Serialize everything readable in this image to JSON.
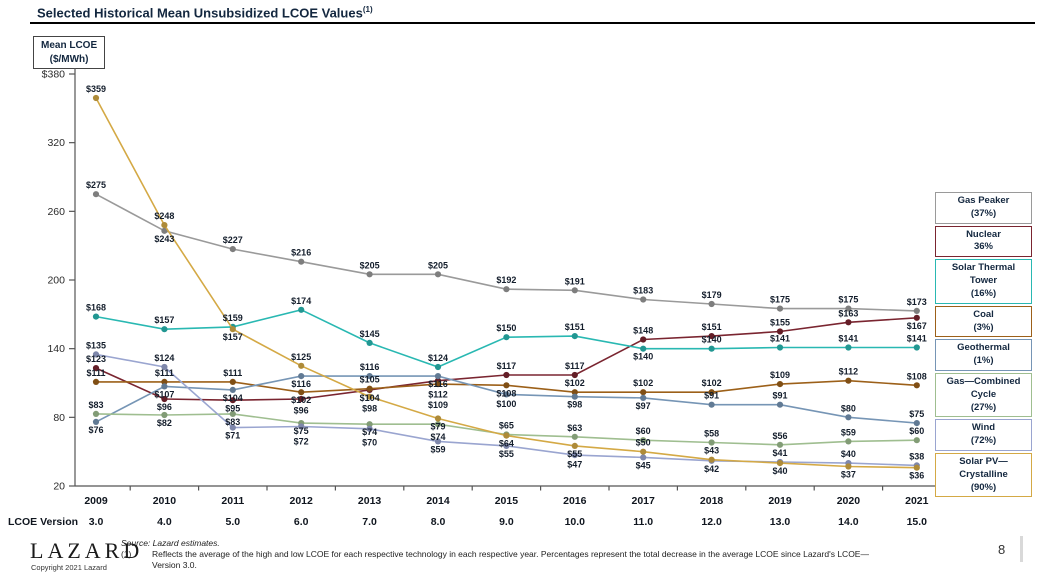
{
  "header": {
    "title": "Selected Historical Mean Unsubsidized LCOE Values",
    "title_superscript": "(1)"
  },
  "axis_box": {
    "line1": "Mean LCOE",
    "line2": "($/MWh)"
  },
  "lcoe_version": {
    "label": "LCOE Version",
    "values": [
      "3.0",
      "4.0",
      "5.0",
      "6.0",
      "7.0",
      "8.0",
      "9.0",
      "10.0",
      "11.0",
      "12.0",
      "13.0",
      "14.0",
      "15.0"
    ]
  },
  "chart_data": {
    "type": "line",
    "title": "Selected Historical Mean Unsubsidized LCOE Values",
    "ylabel": "Mean LCOE ($/MWh)",
    "xlabel": "",
    "ylim": [
      20,
      380
    ],
    "grid": false,
    "legend_position": "right",
    "x": [
      2009,
      2010,
      2011,
      2012,
      2013,
      2014,
      2015,
      2016,
      2017,
      2018,
      2019,
      2020,
      2021
    ],
    "y_ticks": [
      {
        "label": "$380",
        "value": 380
      },
      {
        "label": "320",
        "value": 320
      },
      {
        "label": "260",
        "value": 260
      },
      {
        "label": "200",
        "value": 200
      },
      {
        "label": "140",
        "value": 140
      },
      {
        "label": "80",
        "value": 80
      },
      {
        "label": "20",
        "value": 20
      }
    ],
    "series": [
      {
        "name": "Gas Peaker",
        "legend_lines": [
          "Gas Peaker",
          "(37%)"
        ],
        "color": "#9a9a9a",
        "values": [
          275,
          243,
          227,
          216,
          205,
          205,
          192,
          191,
          183,
          179,
          175,
          175,
          173
        ]
      },
      {
        "name": "Nuclear",
        "legend_lines": [
          "Nuclear",
          "36%"
        ],
        "color": "#7a2530",
        "values": [
          123,
          96,
          95,
          96,
          104,
          112,
          117,
          117,
          148,
          151,
          155,
          163,
          167
        ]
      },
      {
        "name": "Solar Thermal Tower",
        "legend_lines": [
          "Solar Thermal",
          "Tower",
          "(16%)"
        ],
        "color": "#29b8b2",
        "values": [
          168,
          157,
          159,
          174,
          145,
          124,
          150,
          151,
          140,
          140,
          141,
          141,
          141
        ]
      },
      {
        "name": "Coal",
        "legend_lines": [
          "Coal",
          "(3%)"
        ],
        "color": "#9c6019",
        "values": [
          111,
          111,
          111,
          102,
          105,
          109,
          108,
          102,
          102,
          102,
          109,
          112,
          108
        ]
      },
      {
        "name": "Geothermal",
        "legend_lines": [
          "Geothermal",
          "(1%)"
        ],
        "color": "#7695b5",
        "values": [
          76,
          107,
          104,
          116,
          116,
          116,
          100,
          98,
          97,
          91,
          91,
          80,
          75
        ]
      },
      {
        "name": "Gas—Combined Cycle",
        "legend_lines": [
          "Gas—Combined",
          "Cycle",
          "(27%)"
        ],
        "color": "#9fbe90",
        "values": [
          83,
          82,
          83,
          75,
          74,
          74,
          65,
          63,
          60,
          58,
          56,
          59,
          60
        ]
      },
      {
        "name": "Wind",
        "legend_lines": [
          "Wind",
          "(72%)"
        ],
        "color": "#9aa5d0",
        "values": [
          135,
          124,
          71,
          72,
          70,
          59,
          55,
          47,
          45,
          42,
          41,
          40,
          38
        ]
      },
      {
        "name": "Solar PV—Crystalline",
        "legend_lines": [
          "Solar PV—",
          "Crystalline",
          "(90%)"
        ],
        "color": "#d4a945",
        "values": [
          359,
          248,
          157,
          125,
          98,
          79,
          64,
          55,
          50,
          43,
          40,
          37,
          36
        ]
      }
    ]
  },
  "footer": {
    "logo": "LAZARD",
    "copyright": "Copyright 2021 Lazard",
    "source_label": "Source:",
    "source_value": "Lazard estimates.",
    "footnote_marker": "(1)",
    "footnote_line1": "Reflects the average of the high and low LCOE for each respective technology in each respective year. Percentages represent the total decrease in the average LCOE since Lazard's LCOE—",
    "footnote_line2": "Version 3.0.",
    "page_number": "8"
  }
}
